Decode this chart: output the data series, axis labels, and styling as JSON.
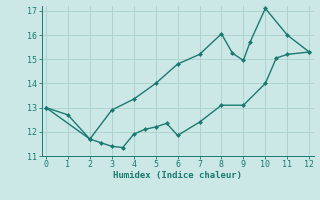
{
  "xlabel": "Humidex (Indice chaleur)",
  "bg_color": "#cce8e6",
  "line_color": "#1a7a70",
  "grid_color": "#afd4d0",
  "xlim": [
    -0.2,
    12.2
  ],
  "ylim": [
    11,
    17.2
  ],
  "xticks": [
    0,
    1,
    2,
    3,
    4,
    5,
    6,
    7,
    8,
    9,
    10,
    11,
    12
  ],
  "yticks": [
    11,
    12,
    13,
    14,
    15,
    16,
    17
  ],
  "line1_x": [
    0,
    1,
    2,
    2.5,
    3,
    3.5,
    4,
    4.5,
    5,
    5.5,
    6,
    7,
    8,
    9,
    10,
    10.5,
    11,
    12
  ],
  "line1_y": [
    13.0,
    12.7,
    11.7,
    11.55,
    11.4,
    11.35,
    11.9,
    12.1,
    12.2,
    12.35,
    11.85,
    12.4,
    13.1,
    13.1,
    14.0,
    15.05,
    15.2,
    15.3
  ],
  "line2_x": [
    0,
    2,
    3,
    4,
    5,
    6,
    7,
    8,
    8.5,
    9,
    9.3,
    10,
    11,
    12
  ],
  "line2_y": [
    13.0,
    11.7,
    12.9,
    13.35,
    14.0,
    14.8,
    15.2,
    16.05,
    15.25,
    14.95,
    15.7,
    17.1,
    16.0,
    15.3
  ],
  "marker_size": 2.5,
  "line_width": 1.0
}
